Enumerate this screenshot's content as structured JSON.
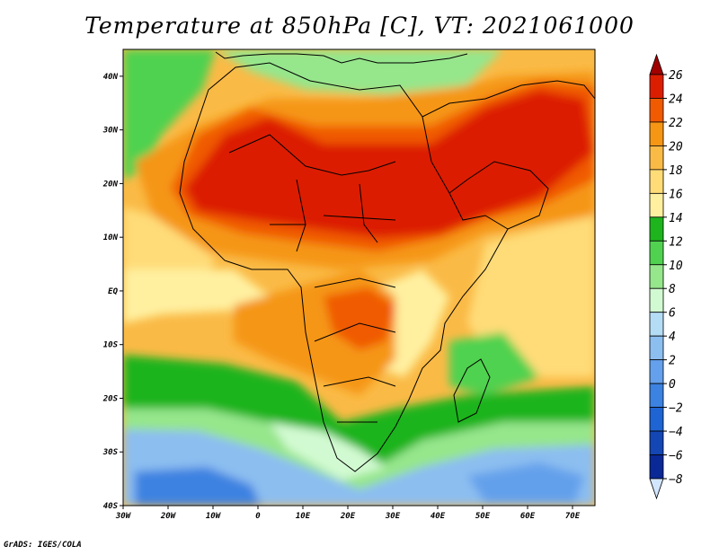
{
  "title": "Temperature at 850hPa [C], VT: 2021061000",
  "credit": "GrADS: IGES/COLA",
  "map": {
    "variable": "Temperature at 850hPa",
    "units": "C",
    "valid_time": "2021061000",
    "lon_range": [
      -30,
      75
    ],
    "lat_range": [
      -40,
      45
    ],
    "lon_ticks": [
      {
        "v": -30,
        "label": "30W"
      },
      {
        "v": -20,
        "label": "20W"
      },
      {
        "v": -10,
        "label": "10W"
      },
      {
        "v": 0,
        "label": "0"
      },
      {
        "v": 10,
        "label": "10E"
      },
      {
        "v": 20,
        "label": "20E"
      },
      {
        "v": 30,
        "label": "30E"
      },
      {
        "v": 40,
        "label": "40E"
      },
      {
        "v": 50,
        "label": "50E"
      },
      {
        "v": 60,
        "label": "60E"
      },
      {
        "v": 70,
        "label": "70E"
      }
    ],
    "lat_ticks": [
      {
        "v": 40,
        "label": "40N"
      },
      {
        "v": 30,
        "label": "30N"
      },
      {
        "v": 20,
        "label": "20N"
      },
      {
        "v": 10,
        "label": "10N"
      },
      {
        "v": 0,
        "label": "EQ"
      },
      {
        "v": -10,
        "label": "10S"
      },
      {
        "v": -20,
        "label": "20S"
      },
      {
        "v": -30,
        "label": "30S"
      },
      {
        "v": -40,
        "label": "40S"
      }
    ]
  },
  "colorbar": {
    "levels": [
      "26",
      "24",
      "22",
      "20",
      "18",
      "16",
      "14",
      "12",
      "10",
      "8",
      "6",
      "4",
      "2",
      "0",
      "-2",
      "-4",
      "-6",
      "-8"
    ],
    "colors": [
      "#a00000",
      "#dc1e00",
      "#f05a00",
      "#f59614",
      "#faba46",
      "#ffdc78",
      "#fff0a0",
      "#1eb41e",
      "#50d250",
      "#96e68c",
      "#d2fad2",
      "#b4dcf5",
      "#8cbef0",
      "#64a0eb",
      "#3c82e1",
      "#1e64d2",
      "#1446b4",
      "#0a2896",
      "#d2e6ff"
    ]
  }
}
